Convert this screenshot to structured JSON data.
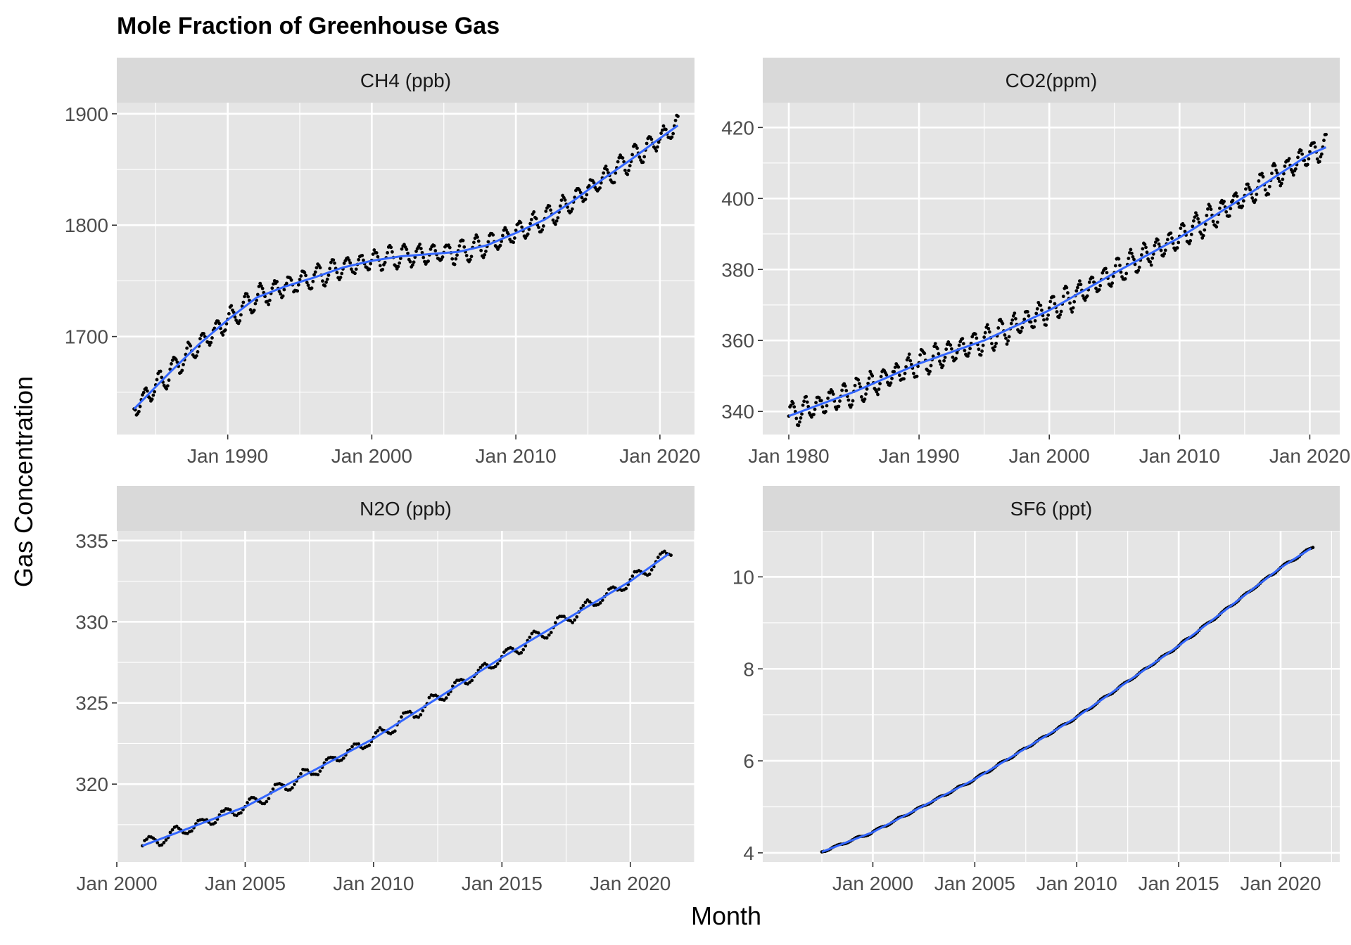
{
  "chart_data": {
    "type": "scatter",
    "title": "Mole Fraction of Greenhouse Gas",
    "xlabel": "Month",
    "ylabel": "Gas Concentration",
    "grid": true,
    "colors": {
      "panel_bg": "#e5e5e5",
      "strip_bg": "#d9d9d9",
      "grid": "#ffffff",
      "points": "#000000",
      "smooth_line": "#3366ff",
      "tick_text": "#4d4d4d"
    },
    "facets": [
      {
        "name": "CH4 (ppb)",
        "xlim": [
          1982.3,
          2022.4
        ],
        "ylim": [
          1612,
          1910
        ],
        "yticks": [
          1700,
          1800,
          1900
        ],
        "ytick_labels": [
          "1700",
          "1800",
          "1900"
        ],
        "xticks": [
          1990,
          2000,
          2010,
          2020
        ],
        "xtick_labels": [
          "Jan 1990",
          "Jan 2000",
          "Jan 2010",
          "Jan 2020"
        ],
        "start_year": 1983.5,
        "end_year": 2021.3,
        "seasonal_amplitude": 9,
        "anchors": [
          [
            1983.5,
            1635
          ],
          [
            1986,
            1668
          ],
          [
            1988,
            1693
          ],
          [
            1990,
            1715
          ],
          [
            1992,
            1735
          ],
          [
            1994,
            1745
          ],
          [
            1996,
            1753
          ],
          [
            1998,
            1762
          ],
          [
            2000,
            1768
          ],
          [
            2002,
            1772
          ],
          [
            2004,
            1774
          ],
          [
            2006,
            1776
          ],
          [
            2008,
            1782
          ],
          [
            2010,
            1793
          ],
          [
            2012,
            1805
          ],
          [
            2014,
            1822
          ],
          [
            2016,
            1841
          ],
          [
            2018,
            1859
          ],
          [
            2020,
            1878
          ],
          [
            2021.3,
            1890
          ]
        ]
      },
      {
        "name": "CO2(ppm)",
        "xlim": [
          1978,
          2022.3
        ],
        "ylim": [
          333.5,
          427
        ],
        "yticks": [
          340,
          360,
          380,
          400,
          420
        ],
        "ytick_labels": [
          "340",
          "360",
          "380",
          "400",
          "420"
        ],
        "xticks": [
          1980,
          1990,
          2000,
          2010,
          2020
        ],
        "xtick_labels": [
          "Jan 1980",
          "Jan 1990",
          "Jan 2000",
          "Jan 2010",
          "Jan 2020"
        ],
        "start_year": 1980,
        "end_year": 2021.3,
        "seasonal_amplitude": 3.2,
        "anchors": [
          [
            1980,
            338.7
          ],
          [
            1985,
            345.5
          ],
          [
            1990,
            353.5
          ],
          [
            1995,
            360
          ],
          [
            2000,
            368.5
          ],
          [
            2005,
            379
          ],
          [
            2010,
            389
          ],
          [
            2015,
            400.5
          ],
          [
            2020,
            412.5
          ],
          [
            2021.3,
            414.5
          ]
        ]
      },
      {
        "name": "N2O (ppb)",
        "xlim": [
          2000,
          2022.5
        ],
        "ylim": [
          315.2,
          335.6
        ],
        "yticks": [
          320,
          325,
          330,
          335
        ],
        "ytick_labels": [
          "320",
          "325",
          "330",
          "335"
        ],
        "xticks": [
          2000,
          2005,
          2010,
          2015,
          2020
        ],
        "xtick_labels": [
          "Jan 2000",
          "Jan 2005",
          "Jan 2010",
          "Jan 2015",
          "Jan 2020"
        ],
        "start_year": 2001,
        "end_year": 2021.6,
        "seasonal_amplitude": 0.35,
        "anchors": [
          [
            2001,
            316.2
          ],
          [
            2005,
            318.6
          ],
          [
            2010,
            322.8
          ],
          [
            2015,
            327.8
          ],
          [
            2020,
            332.5
          ],
          [
            2021.6,
            334.3
          ]
        ]
      },
      {
        "name": "SF6 (ppt)",
        "xlim": [
          1994.6,
          2022.9
        ],
        "ylim": [
          3.8,
          11.0
        ],
        "yticks": [
          4,
          6,
          8,
          10
        ],
        "ytick_labels": [
          "4",
          "6",
          "8",
          "10"
        ],
        "xticks": [
          2000,
          2005,
          2010,
          2015,
          2020
        ],
        "xtick_labels": [
          "Jan 2000",
          "Jan 2005",
          "Jan 2010",
          "Jan 2015",
          "Jan 2020"
        ],
        "start_year": 1997.5,
        "end_year": 2021.6,
        "seasonal_amplitude": 0.02,
        "anchors": [
          [
            1997.5,
            4.02
          ],
          [
            2000,
            4.45
          ],
          [
            2005,
            5.6
          ],
          [
            2010,
            6.95
          ],
          [
            2015,
            8.5
          ],
          [
            2020,
            10.2
          ],
          [
            2021.6,
            10.65
          ]
        ]
      }
    ]
  }
}
